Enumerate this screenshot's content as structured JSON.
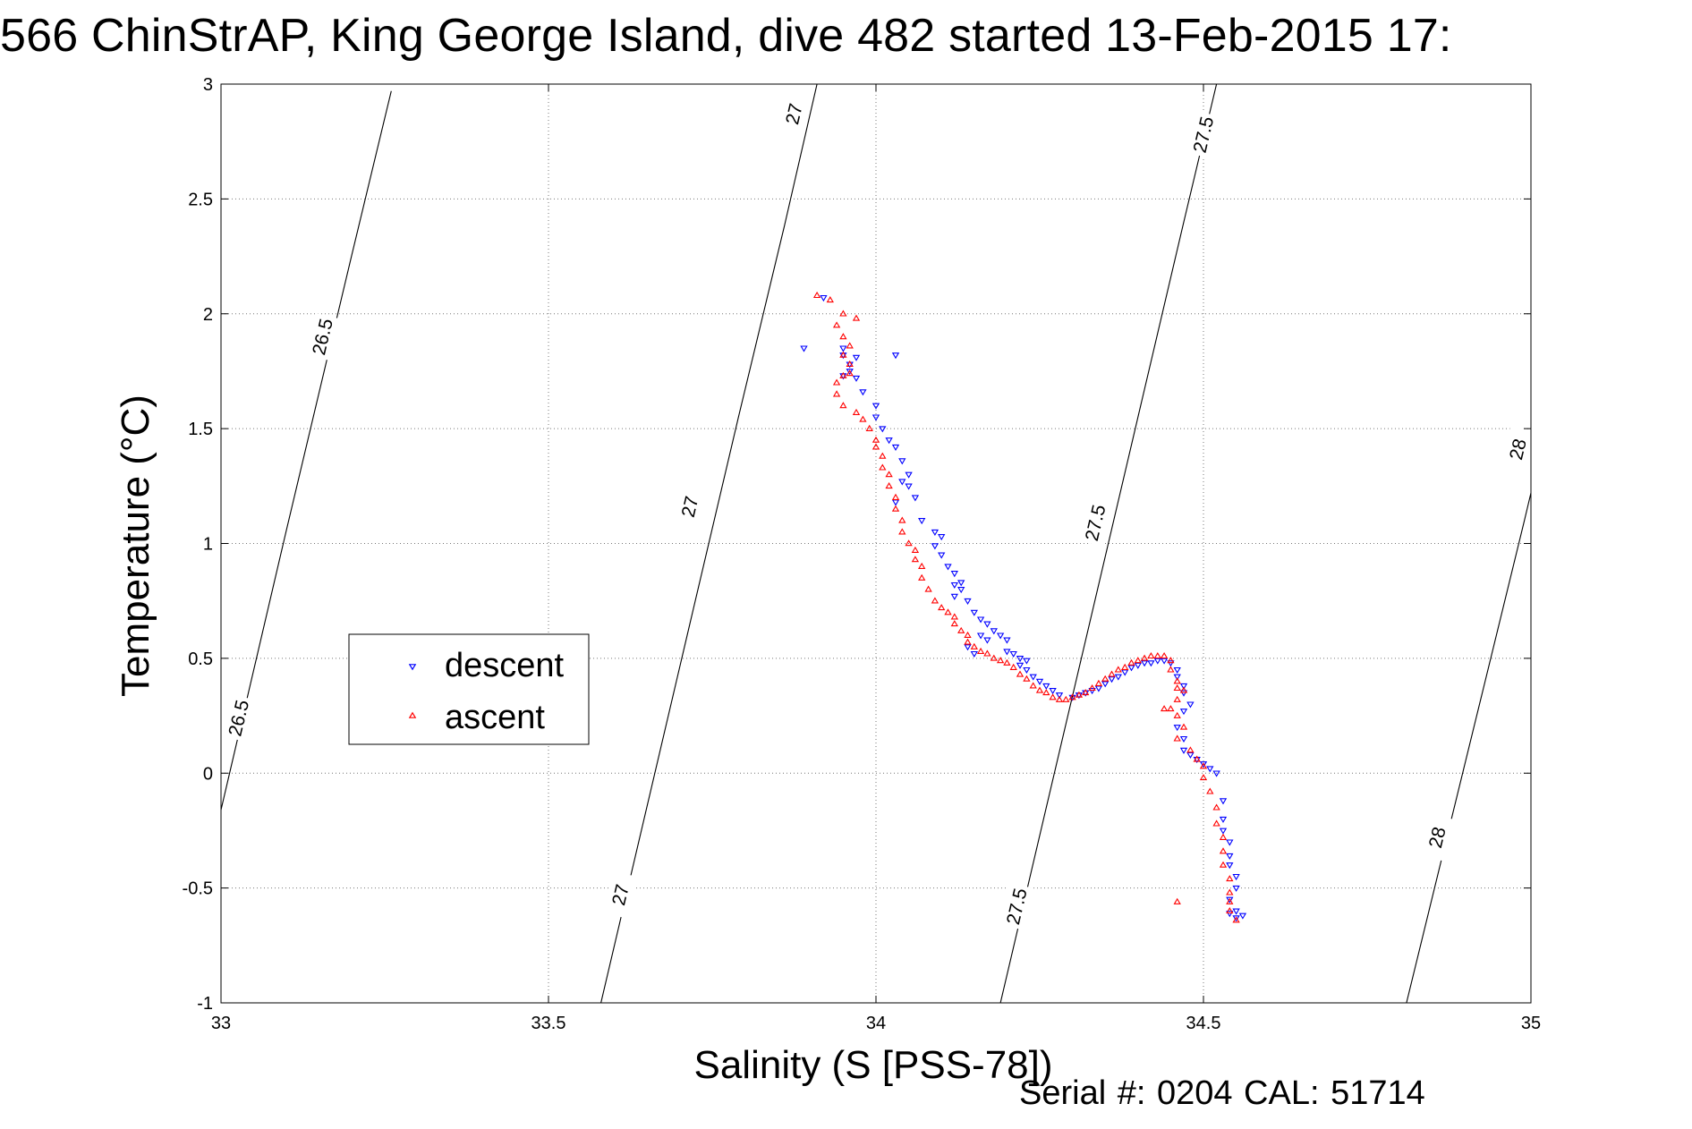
{
  "chart_data": {
    "type": "scatter",
    "title": "566 ChinStrAP, King George Island, dive 482 started 13-Feb-2015 17:",
    "xlabel": "Salinity (S [PSS-78])",
    "ylabel": "Temperature (°C)",
    "xlim": [
      33,
      35
    ],
    "ylim": [
      -1,
      3
    ],
    "xticks": [
      "33",
      "33.5",
      "34",
      "34.5",
      "35"
    ],
    "yticks": [
      "-1",
      "-0.5",
      "0",
      "0.5",
      "1",
      "1.5",
      "2",
      "2.5",
      "3"
    ],
    "grid": true,
    "legend_position": "left-middle",
    "footer": "Serial #: 0204  CAL: 51714",
    "density_contours": [
      {
        "label": "26.5",
        "points": [
          [
            33.0,
            -0.16
          ],
          [
            33.05,
            0.45
          ],
          [
            33.1,
            1.06
          ],
          [
            33.15,
            1.66
          ],
          [
            33.2,
            2.26
          ],
          [
            33.26,
            2.97
          ]
        ],
        "labels_at": [
          [
            33.027,
            0.24
          ],
          [
            33.155,
            1.9
          ]
        ]
      },
      {
        "label": "27",
        "points": [
          [
            33.58,
            -1.0
          ],
          [
            33.65,
            -0.15
          ],
          [
            33.72,
            0.7
          ],
          [
            33.79,
            1.55
          ],
          [
            33.86,
            2.38
          ],
          [
            33.91,
            3.0
          ]
        ],
        "labels_at": [
          [
            33.61,
            -0.53
          ],
          [
            33.716,
            1.16
          ],
          [
            33.875,
            2.87
          ]
        ]
      },
      {
        "label": "27.5",
        "points": [
          [
            34.19,
            -1.0
          ],
          [
            34.26,
            -0.15
          ],
          [
            34.33,
            0.7
          ],
          [
            34.4,
            1.55
          ],
          [
            34.47,
            2.4
          ],
          [
            34.52,
            3.0
          ]
        ],
        "labels_at": [
          [
            34.215,
            -0.58
          ],
          [
            34.335,
            1.09
          ],
          [
            34.5,
            2.78
          ]
        ]
      },
      {
        "label": "28",
        "points": [
          [
            34.81,
            -1.0
          ],
          [
            34.87,
            -0.3
          ],
          [
            34.93,
            0.4
          ],
          [
            34.99,
            1.1
          ],
          [
            35.0,
            1.22
          ]
        ],
        "labels_at": [
          [
            34.857,
            -0.28
          ],
          [
            34.98,
            1.41
          ]
        ]
      }
    ],
    "series": [
      {
        "name": "descent",
        "color": "#0000ff",
        "marker": "triangle-down",
        "points": [
          [
            33.89,
            1.85
          ],
          [
            33.92,
            2.07
          ],
          [
            33.97,
            1.81
          ],
          [
            34.03,
            1.82
          ],
          [
            33.95,
            1.85
          ],
          [
            33.95,
            1.82
          ],
          [
            33.96,
            1.78
          ],
          [
            33.96,
            1.75
          ],
          [
            33.95,
            1.73
          ],
          [
            33.97,
            1.72
          ],
          [
            33.98,
            1.66
          ],
          [
            34.0,
            1.6
          ],
          [
            34.0,
            1.55
          ],
          [
            34.01,
            1.5
          ],
          [
            34.02,
            1.45
          ],
          [
            34.03,
            1.42
          ],
          [
            34.04,
            1.36
          ],
          [
            34.05,
            1.3
          ],
          [
            34.05,
            1.25
          ],
          [
            34.06,
            1.2
          ],
          [
            34.04,
            1.27
          ],
          [
            34.03,
            1.18
          ],
          [
            34.07,
            1.1
          ],
          [
            34.09,
            1.05
          ],
          [
            34.1,
            1.03
          ],
          [
            34.09,
            0.99
          ],
          [
            34.1,
            0.95
          ],
          [
            34.11,
            0.9
          ],
          [
            34.12,
            0.87
          ],
          [
            34.13,
            0.83
          ],
          [
            34.12,
            0.82
          ],
          [
            34.13,
            0.8
          ],
          [
            34.12,
            0.77
          ],
          [
            34.14,
            0.75
          ],
          [
            34.15,
            0.7
          ],
          [
            34.16,
            0.67
          ],
          [
            34.17,
            0.65
          ],
          [
            34.18,
            0.62
          ],
          [
            34.19,
            0.6
          ],
          [
            34.2,
            0.58
          ],
          [
            34.16,
            0.6
          ],
          [
            34.17,
            0.58
          ],
          [
            34.14,
            0.55
          ],
          [
            34.15,
            0.52
          ],
          [
            34.2,
            0.53
          ],
          [
            34.21,
            0.52
          ],
          [
            34.22,
            0.5
          ],
          [
            34.23,
            0.49
          ],
          [
            34.22,
            0.47
          ],
          [
            34.23,
            0.45
          ],
          [
            34.24,
            0.42
          ],
          [
            34.25,
            0.4
          ],
          [
            34.26,
            0.38
          ],
          [
            34.27,
            0.36
          ],
          [
            34.28,
            0.34
          ],
          [
            34.3,
            0.33
          ],
          [
            34.31,
            0.34
          ],
          [
            34.32,
            0.35
          ],
          [
            34.33,
            0.36
          ],
          [
            34.34,
            0.37
          ],
          [
            34.35,
            0.39
          ],
          [
            34.36,
            0.41
          ],
          [
            34.37,
            0.42
          ],
          [
            34.38,
            0.44
          ],
          [
            34.39,
            0.46
          ],
          [
            34.4,
            0.47
          ],
          [
            34.41,
            0.48
          ],
          [
            34.42,
            0.48
          ],
          [
            34.43,
            0.49
          ],
          [
            34.44,
            0.49
          ],
          [
            34.45,
            0.48
          ],
          [
            34.46,
            0.45
          ],
          [
            34.46,
            0.42
          ],
          [
            34.47,
            0.38
          ],
          [
            34.47,
            0.35
          ],
          [
            34.48,
            0.3
          ],
          [
            34.47,
            0.27
          ],
          [
            34.46,
            0.2
          ],
          [
            34.47,
            0.15
          ],
          [
            34.47,
            0.1
          ],
          [
            34.48,
            0.08
          ],
          [
            34.49,
            0.06
          ],
          [
            34.5,
            0.04
          ],
          [
            34.51,
            0.02
          ],
          [
            34.52,
            0.0
          ],
          [
            34.53,
            -0.12
          ],
          [
            34.53,
            -0.2
          ],
          [
            34.53,
            -0.25
          ],
          [
            34.54,
            -0.3
          ],
          [
            34.54,
            -0.36
          ],
          [
            34.54,
            -0.4
          ],
          [
            34.55,
            -0.45
          ],
          [
            34.55,
            -0.5
          ],
          [
            34.54,
            -0.55
          ],
          [
            34.55,
            -0.6
          ],
          [
            34.56,
            -0.62
          ],
          [
            34.55,
            -0.63
          ],
          [
            34.54,
            -0.61
          ]
        ]
      },
      {
        "name": "ascent",
        "color": "#ff0000",
        "marker": "triangle-up",
        "points": [
          [
            33.91,
            2.08
          ],
          [
            33.93,
            2.06
          ],
          [
            33.95,
            2.0
          ],
          [
            33.94,
            1.95
          ],
          [
            33.95,
            1.9
          ],
          [
            33.96,
            1.86
          ],
          [
            33.95,
            1.82
          ],
          [
            33.96,
            1.78
          ],
          [
            33.95,
            1.73
          ],
          [
            33.94,
            1.7
          ],
          [
            33.96,
            1.74
          ],
          [
            33.97,
            1.98
          ],
          [
            33.94,
            1.65
          ],
          [
            33.95,
            1.6
          ],
          [
            33.97,
            1.57
          ],
          [
            33.98,
            1.54
          ],
          [
            33.99,
            1.5
          ],
          [
            34.0,
            1.45
          ],
          [
            34.0,
            1.42
          ],
          [
            34.01,
            1.38
          ],
          [
            34.01,
            1.33
          ],
          [
            34.02,
            1.3
          ],
          [
            34.02,
            1.25
          ],
          [
            34.03,
            1.2
          ],
          [
            34.03,
            1.15
          ],
          [
            34.04,
            1.1
          ],
          [
            34.04,
            1.05
          ],
          [
            34.05,
            1.0
          ],
          [
            34.06,
            0.97
          ],
          [
            34.06,
            0.93
          ],
          [
            34.07,
            0.9
          ],
          [
            34.07,
            0.85
          ],
          [
            34.08,
            0.8
          ],
          [
            34.09,
            0.75
          ],
          [
            34.1,
            0.72
          ],
          [
            34.11,
            0.7
          ],
          [
            34.12,
            0.68
          ],
          [
            34.12,
            0.65
          ],
          [
            34.13,
            0.62
          ],
          [
            34.14,
            0.6
          ],
          [
            34.14,
            0.57
          ],
          [
            34.15,
            0.55
          ],
          [
            34.16,
            0.53
          ],
          [
            34.17,
            0.52
          ],
          [
            34.18,
            0.5
          ],
          [
            34.19,
            0.49
          ],
          [
            34.2,
            0.48
          ],
          [
            34.21,
            0.46
          ],
          [
            34.22,
            0.43
          ],
          [
            34.23,
            0.41
          ],
          [
            34.24,
            0.38
          ],
          [
            34.25,
            0.36
          ],
          [
            34.26,
            0.35
          ],
          [
            34.27,
            0.33
          ],
          [
            34.28,
            0.32
          ],
          [
            34.29,
            0.32
          ],
          [
            34.3,
            0.33
          ],
          [
            34.31,
            0.34
          ],
          [
            34.32,
            0.35
          ],
          [
            34.33,
            0.37
          ],
          [
            34.34,
            0.39
          ],
          [
            34.35,
            0.41
          ],
          [
            34.36,
            0.43
          ],
          [
            34.37,
            0.45
          ],
          [
            34.38,
            0.46
          ],
          [
            34.39,
            0.48
          ],
          [
            34.4,
            0.49
          ],
          [
            34.41,
            0.5
          ],
          [
            34.42,
            0.51
          ],
          [
            34.43,
            0.51
          ],
          [
            34.44,
            0.51
          ],
          [
            34.45,
            0.49
          ],
          [
            34.45,
            0.45
          ],
          [
            34.46,
            0.4
          ],
          [
            34.46,
            0.37
          ],
          [
            34.47,
            0.36
          ],
          [
            34.46,
            0.32
          ],
          [
            34.45,
            0.28
          ],
          [
            34.46,
            0.25
          ],
          [
            34.47,
            0.2
          ],
          [
            34.46,
            0.15
          ],
          [
            34.48,
            0.1
          ],
          [
            34.49,
            0.06
          ],
          [
            34.5,
            0.03
          ],
          [
            34.5,
            -0.02
          ],
          [
            34.51,
            -0.08
          ],
          [
            34.52,
            -0.15
          ],
          [
            34.52,
            -0.22
          ],
          [
            34.53,
            -0.28
          ],
          [
            34.53,
            -0.34
          ],
          [
            34.53,
            -0.4
          ],
          [
            34.54,
            -0.46
          ],
          [
            34.54,
            -0.52
          ],
          [
            34.54,
            -0.56
          ],
          [
            34.54,
            -0.6
          ],
          [
            34.55,
            -0.64
          ],
          [
            34.46,
            -0.56
          ],
          [
            34.44,
            0.28
          ]
        ]
      }
    ]
  }
}
